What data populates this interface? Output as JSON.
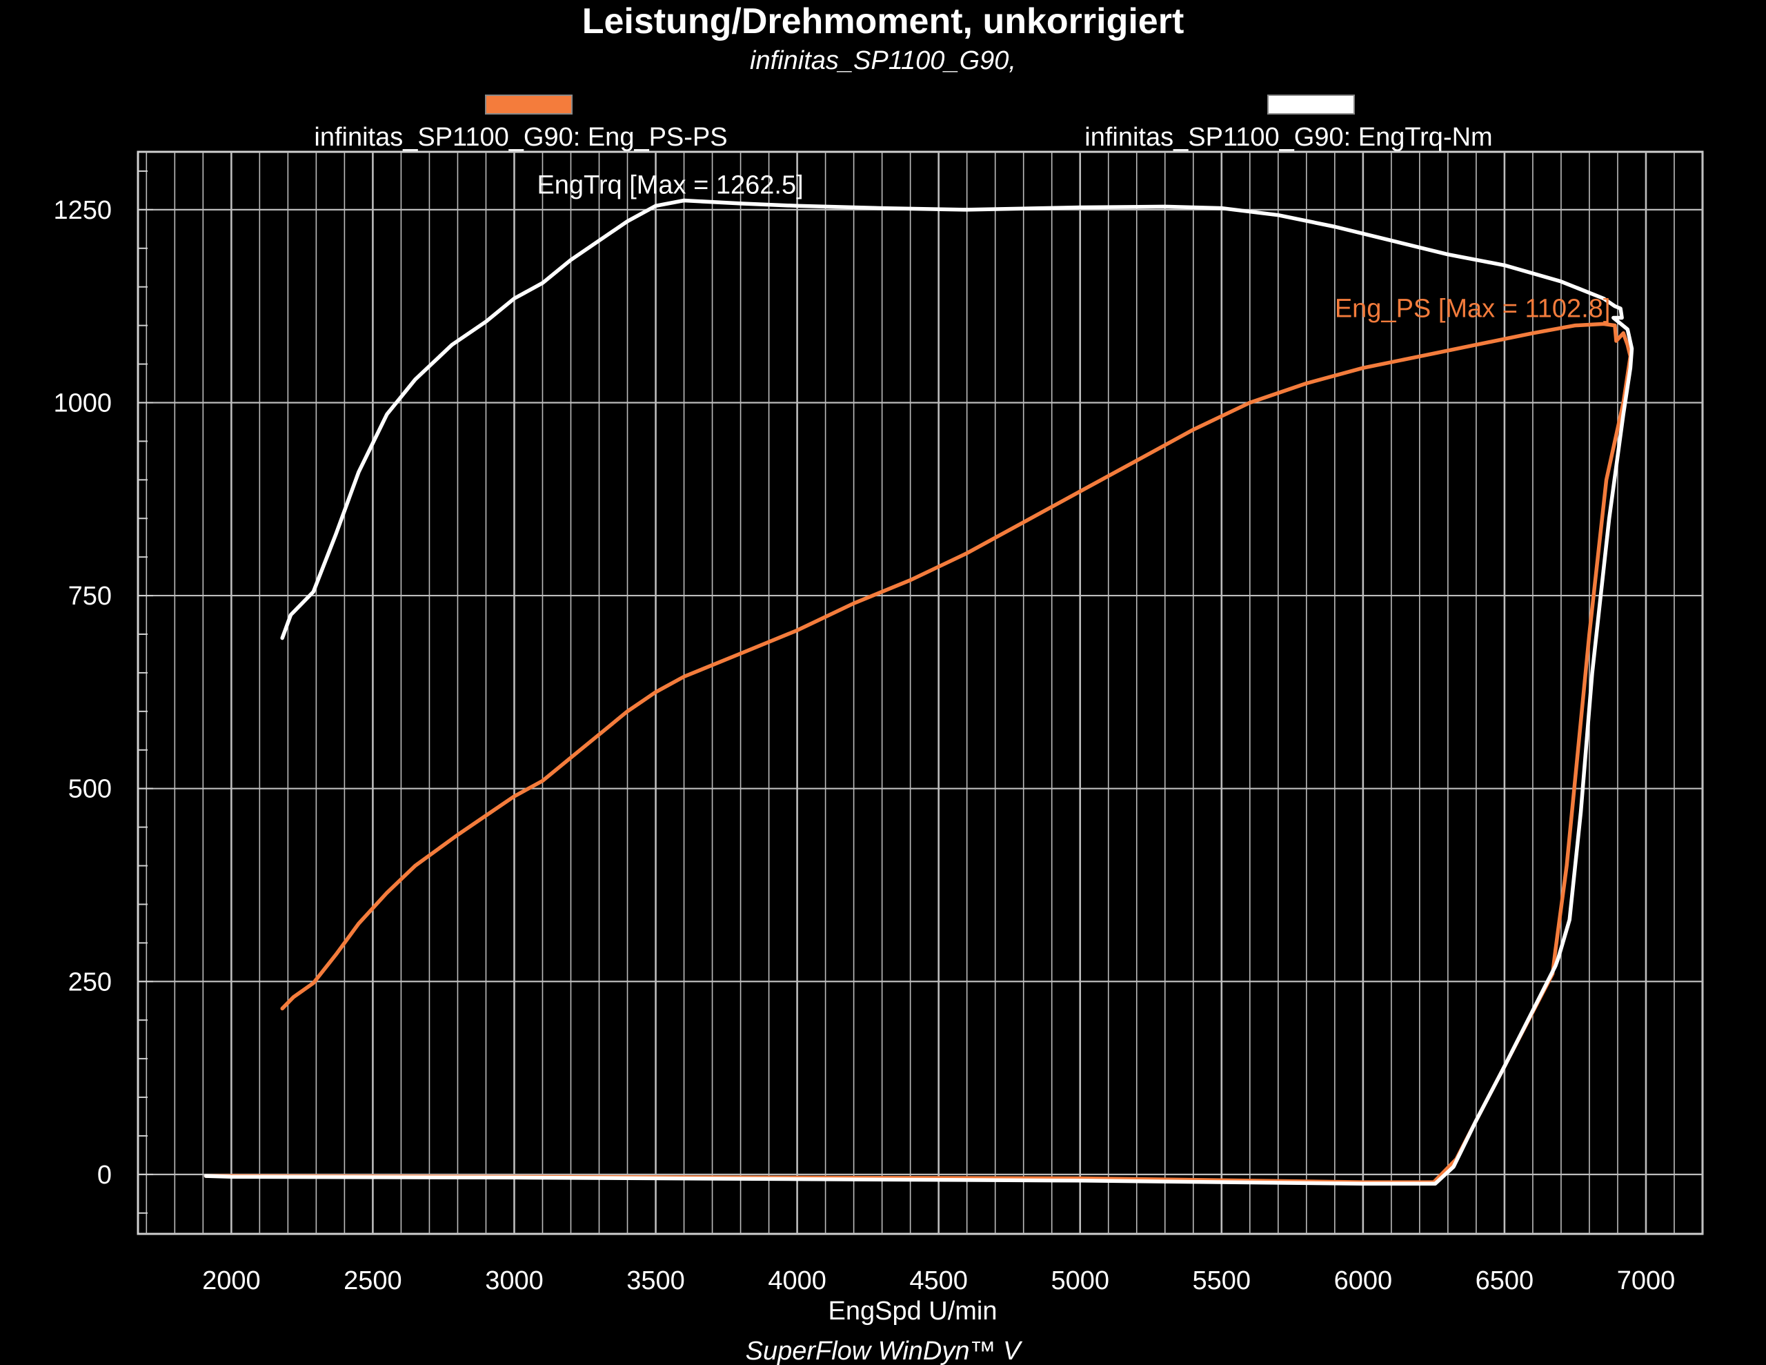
{
  "chart_data": {
    "type": "line",
    "title": "Leistung/Drehmoment, unkorrigiert",
    "subtitle": "infinitas_SP1100_G90,",
    "xlabel": "EngSpd U/min",
    "ylabel": "",
    "footer": "SuperFlow WinDyn™ V",
    "xlim": [
      1670,
      7200
    ],
    "ylim": [
      -77,
      1325
    ],
    "x_ticks": [
      2000,
      2500,
      3000,
      3500,
      4000,
      4500,
      5000,
      5500,
      6000,
      6500,
      7000
    ],
    "y_ticks": [
      0,
      250,
      500,
      750,
      1000,
      1250
    ],
    "x_tick_labels": [
      "2000",
      "2500",
      "3000",
      "3500",
      "4000",
      "4500",
      "5000",
      "5500",
      "6000",
      "6500",
      "7000"
    ],
    "y_tick_labels": [
      "0",
      "250",
      "500",
      "750",
      "1000",
      "1250"
    ],
    "grid": true,
    "legend_position": "top",
    "background": "#000000",
    "grid_color": "#bdbdbd",
    "series": [
      {
        "name": "infinitas_SP1100_G90: Eng_PS-PS",
        "color": "#f47c3c",
        "annotation": "Eng_PS [Max = 1102.8]",
        "points": [
          [
            2180,
            215
          ],
          [
            2220,
            230
          ],
          [
            2290,
            248
          ],
          [
            2370,
            285
          ],
          [
            2450,
            325
          ],
          [
            2550,
            365
          ],
          [
            2650,
            400
          ],
          [
            2800,
            440
          ],
          [
            2920,
            470
          ],
          [
            3000,
            490
          ],
          [
            3100,
            510
          ],
          [
            3200,
            540
          ],
          [
            3300,
            570
          ],
          [
            3400,
            600
          ],
          [
            3500,
            625
          ],
          [
            3600,
            645
          ],
          [
            3800,
            675
          ],
          [
            4000,
            705
          ],
          [
            4200,
            740
          ],
          [
            4400,
            770
          ],
          [
            4600,
            805
          ],
          [
            4800,
            845
          ],
          [
            5000,
            885
          ],
          [
            5200,
            925
          ],
          [
            5400,
            965
          ],
          [
            5600,
            1000
          ],
          [
            5800,
            1025
          ],
          [
            6000,
            1045
          ],
          [
            6200,
            1060
          ],
          [
            6400,
            1075
          ],
          [
            6600,
            1090
          ],
          [
            6750,
            1100
          ],
          [
            6850,
            1102
          ],
          [
            6890,
            1100
          ],
          [
            6895,
            1080
          ],
          [
            6920,
            1090
          ],
          [
            6935,
            1075
          ],
          [
            6945,
            1060
          ],
          [
            6920,
            1000
          ],
          [
            6860,
            900
          ],
          [
            6800,
            700
          ],
          [
            6760,
            550
          ],
          [
            6720,
            400
          ],
          [
            6680,
            290
          ],
          [
            6670,
            260
          ],
          [
            6500,
            140
          ],
          [
            6400,
            70
          ],
          [
            6330,
            20
          ],
          [
            6250,
            -10
          ],
          [
            6000,
            -10
          ],
          [
            5000,
            -5
          ],
          [
            4000,
            -4
          ],
          [
            3000,
            -3
          ],
          [
            2000,
            -2
          ],
          [
            1910,
            -2
          ]
        ]
      },
      {
        "name": "infinitas_SP1100_G90: EngTrq-Nm",
        "color": "#ffffff",
        "annotation": "EngTrq [Max = 1262.5]",
        "points": [
          [
            2180,
            695
          ],
          [
            2210,
            725
          ],
          [
            2290,
            755
          ],
          [
            2370,
            830
          ],
          [
            2450,
            910
          ],
          [
            2550,
            985
          ],
          [
            2650,
            1030
          ],
          [
            2780,
            1075
          ],
          [
            2900,
            1105
          ],
          [
            3000,
            1135
          ],
          [
            3100,
            1155
          ],
          [
            3200,
            1185
          ],
          [
            3300,
            1210
          ],
          [
            3400,
            1235
          ],
          [
            3500,
            1255
          ],
          [
            3600,
            1262
          ],
          [
            3800,
            1258
          ],
          [
            4000,
            1255
          ],
          [
            4300,
            1252
          ],
          [
            4600,
            1250
          ],
          [
            5000,
            1253
          ],
          [
            5300,
            1254
          ],
          [
            5500,
            1252
          ],
          [
            5700,
            1243
          ],
          [
            5900,
            1228
          ],
          [
            6100,
            1210
          ],
          [
            6300,
            1192
          ],
          [
            6500,
            1178
          ],
          [
            6700,
            1157
          ],
          [
            6850,
            1135
          ],
          [
            6890,
            1125
          ],
          [
            6910,
            1122
          ],
          [
            6915,
            1110
          ],
          [
            6885,
            1110
          ],
          [
            6935,
            1095
          ],
          [
            6950,
            1070
          ],
          [
            6945,
            1045
          ],
          [
            6920,
            985
          ],
          [
            6870,
            850
          ],
          [
            6810,
            650
          ],
          [
            6770,
            470
          ],
          [
            6730,
            330
          ],
          [
            6690,
            280
          ],
          [
            6680,
            270
          ],
          [
            6500,
            140
          ],
          [
            6400,
            70
          ],
          [
            6320,
            10
          ],
          [
            6255,
            -12
          ],
          [
            6000,
            -12
          ],
          [
            5000,
            -8
          ],
          [
            4000,
            -6
          ],
          [
            3000,
            -4
          ],
          [
            2000,
            -3
          ],
          [
            1910,
            -2
          ]
        ]
      }
    ]
  }
}
